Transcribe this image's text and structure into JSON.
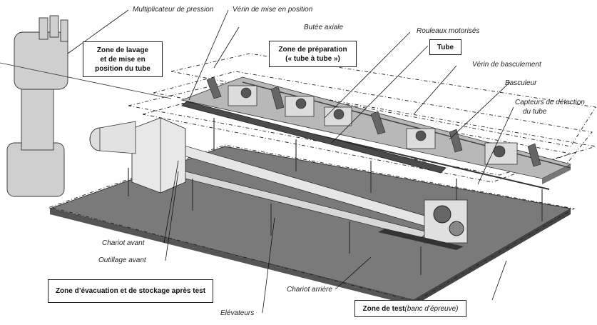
{
  "labels": {
    "multiplicateur": "Multiplicateur de pression",
    "verin_mise": "Vérin de mise en position",
    "butee": "Butée axiale",
    "rouleaux": "Rouleaux motorisés",
    "verin_basc": "Vérin de basculement",
    "basculeur": "Basculeur",
    "capteurs_1": "Capteurs de détection",
    "capteurs_2": "du tube",
    "chariot_avant": "Chariot avant",
    "outillage_avant": "Outillage avant",
    "chariot_arriere": "Chariot arrière",
    "elevateurs": "Elévateurs"
  },
  "boxes": {
    "lavage_1": "Zone de lavage",
    "lavage_2": "et de mise en",
    "lavage_3": "position du tube",
    "prep_1": "Zone de préparation",
    "prep_2": "(« tube à tube »)",
    "tube": "Tube",
    "evacuation": "Zone d’évacuation et de stockage après test",
    "test_bold": "Zone de test",
    "test_it": " (banc d’épreuve)"
  }
}
